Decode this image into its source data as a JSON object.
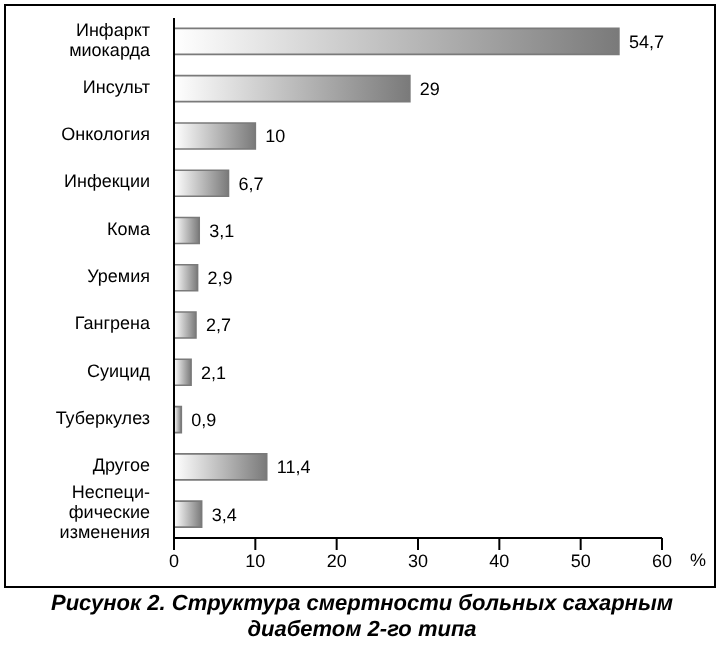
{
  "chart_data": {
    "type": "bar",
    "orientation": "horizontal",
    "title": "Рисунок 2. Структура смертности больных сахарным диабетом 2-го типа",
    "xlabel": "%",
    "categories": [
      "Инфаркт миокарда",
      "Инсульт",
      "Онкология",
      "Инфекции",
      "Кома",
      "Уремия",
      "Гангрена",
      "Суицид",
      "Туберкулез",
      "Другое",
      "Неспеци-фические изменения"
    ],
    "values": [
      54.7,
      29,
      10,
      6.7,
      3.1,
      2.9,
      2.7,
      2.1,
      0.9,
      11.4,
      3.4
    ],
    "color": "#7a7a7a",
    "value_labels": [
      "54,7",
      "29",
      "10",
      "6,7",
      "3,1",
      "2,9",
      "2,7",
      "2,1",
      "0,9",
      "11,4",
      "3,4"
    ],
    "grid": false,
    "legend": false,
    "xlim": [
      0,
      60
    ],
    "xticks": [
      0,
      10,
      20,
      30,
      40,
      50,
      60
    ]
  }
}
